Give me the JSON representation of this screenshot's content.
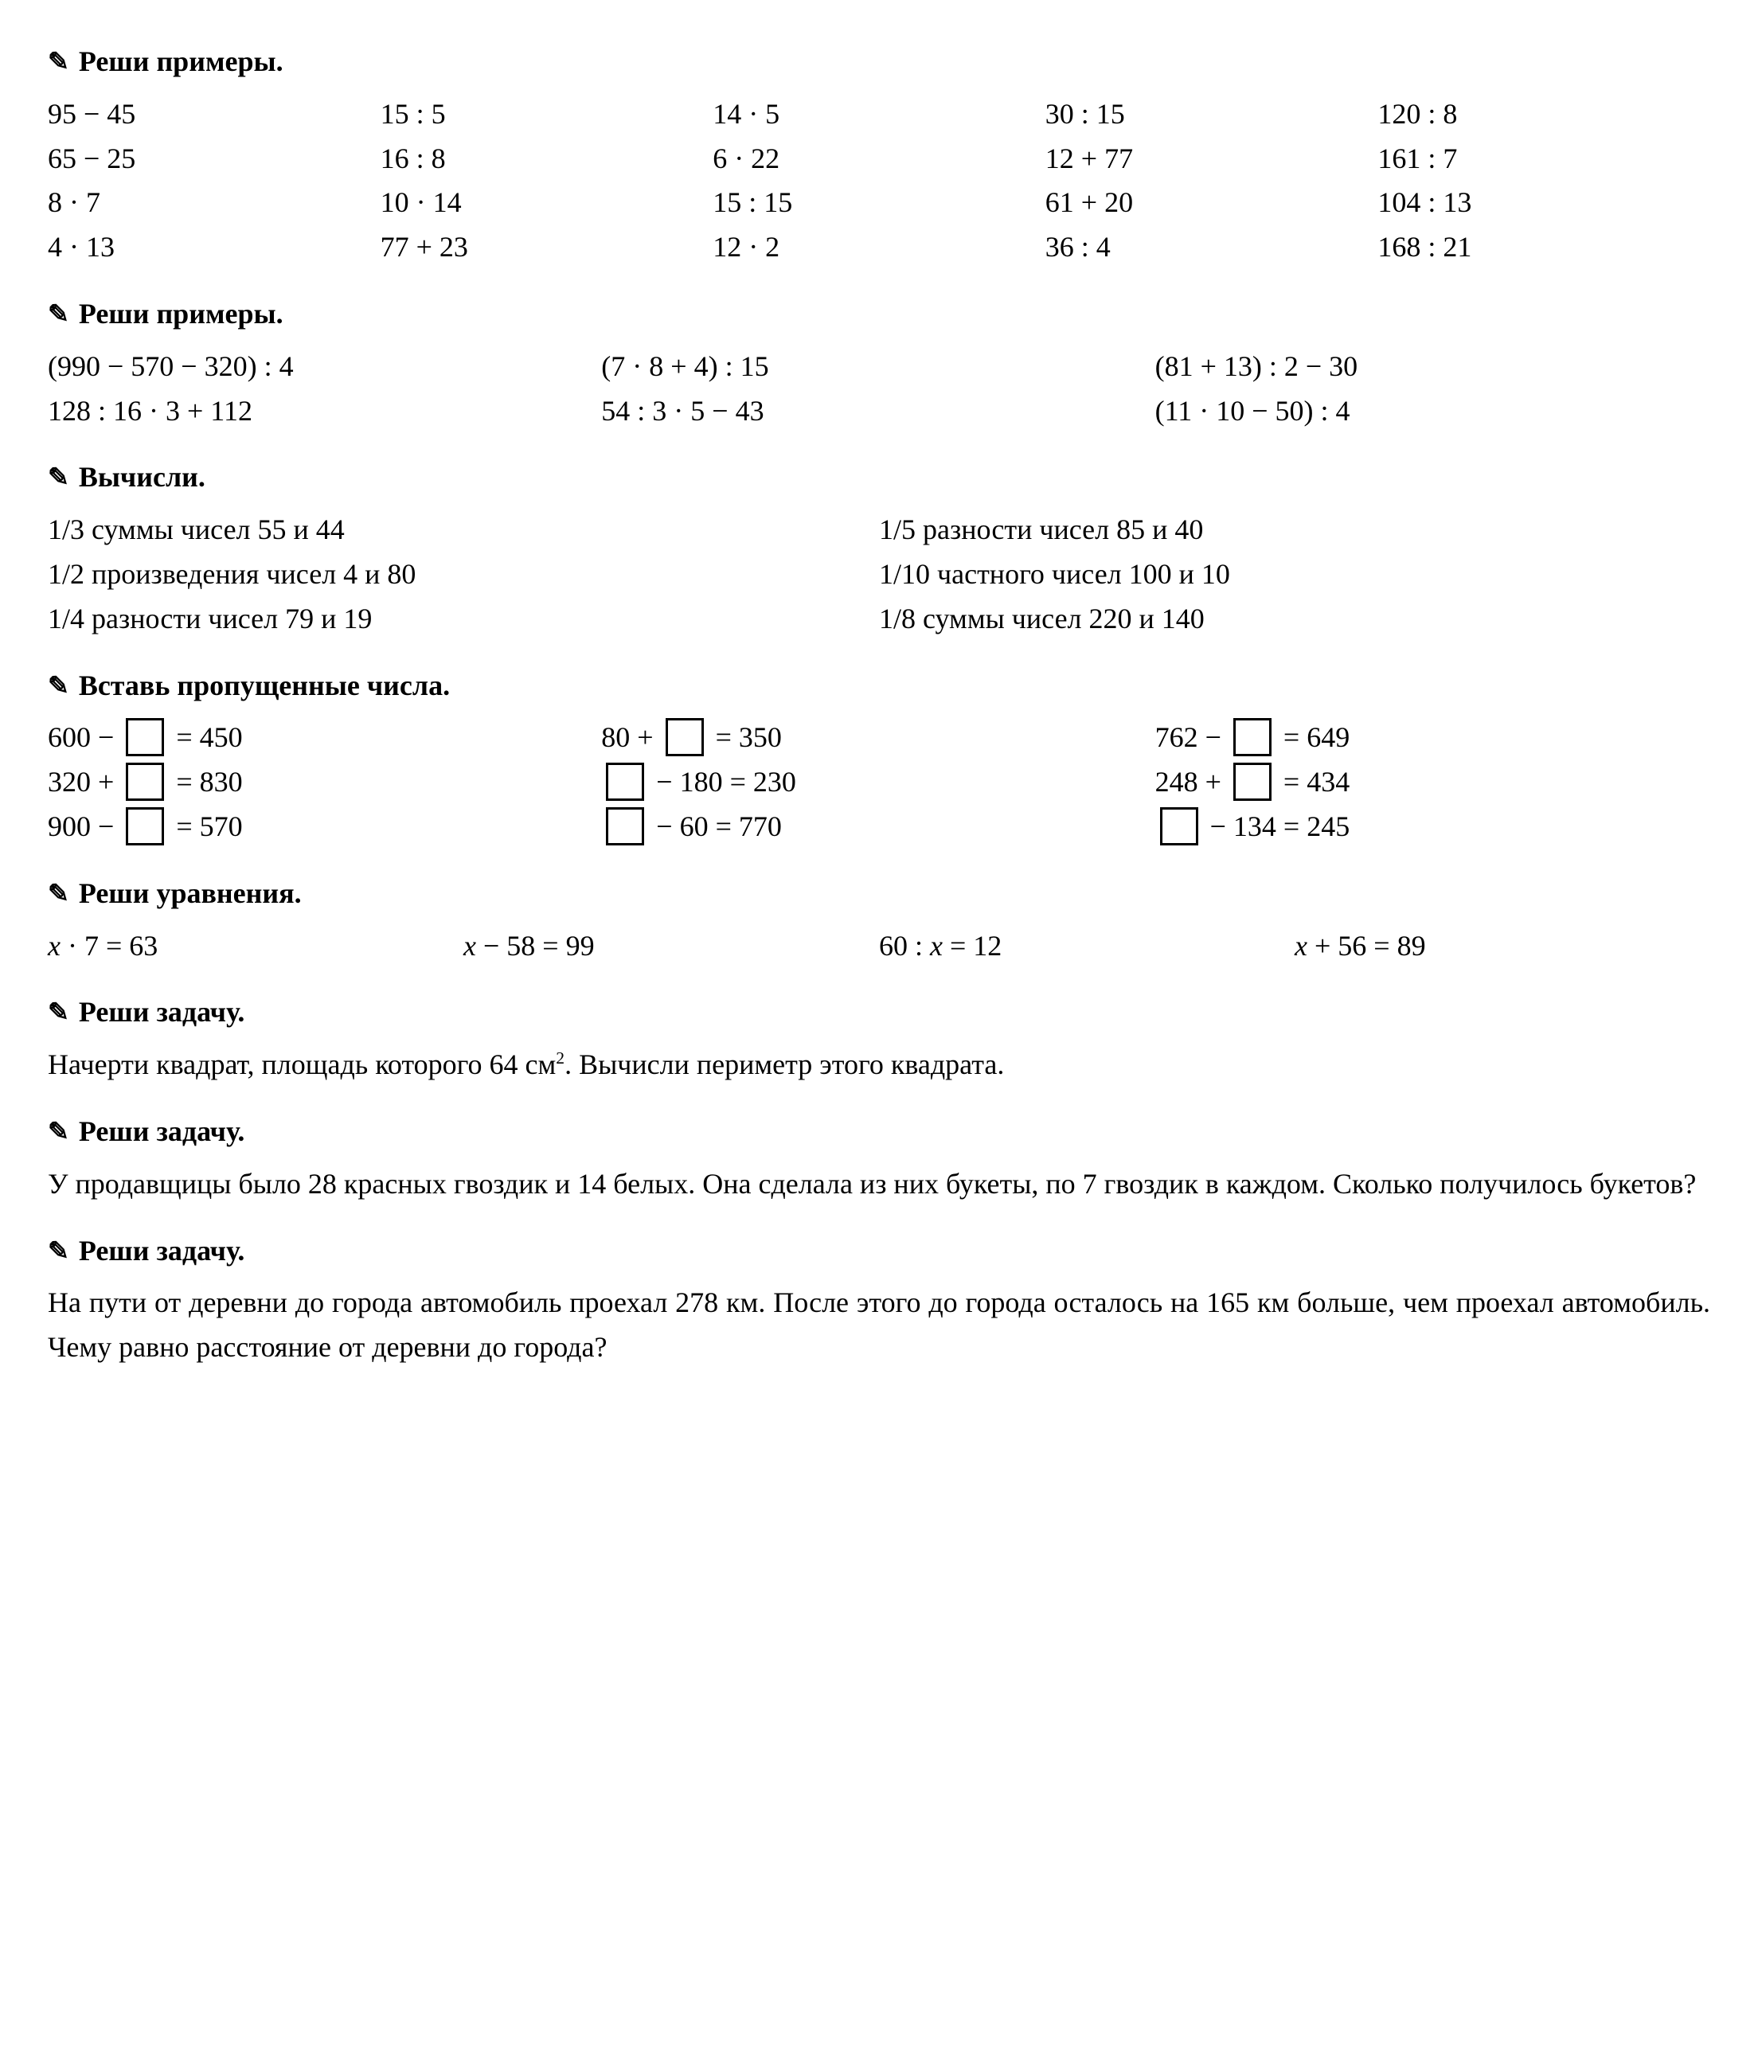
{
  "s1": {
    "title": "Реши примеры.",
    "cols": [
      [
        "95 − 45",
        "65 − 25",
        "8 · 7",
        "4 · 13"
      ],
      [
        "15 : 5",
        "16 : 8",
        "10 · 14",
        "77 + 23"
      ],
      [
        "14 · 5",
        "6 · 22",
        "15 : 15",
        "12 · 2"
      ],
      [
        "30 : 15",
        "12 + 77",
        "61 + 20",
        "36 : 4"
      ],
      [
        "120 : 8",
        "161 : 7",
        "104 : 13",
        "168 : 21"
      ]
    ]
  },
  "s2": {
    "title": "Реши примеры.",
    "cols": [
      [
        "(990 − 570 − 320) : 4",
        "128 : 16 · 3 + 112"
      ],
      [
        "(7 · 8 + 4) : 15",
        "54 : 3 · 5 − 43"
      ],
      [
        "(81 + 13) : 2 − 30",
        "(11 · 10 − 50) : 4"
      ]
    ]
  },
  "s3": {
    "title": "Вычисли.",
    "cols": [
      [
        "1/3 суммы чисел 55 и 44",
        "1/2 произведения чисел 4 и 80",
        "1/4 разности чисел 79 и 19"
      ],
      [
        "1/5 разности чисел 85 и 40",
        "1/10 частного чисел 100 и 10",
        "1/8 суммы чисел 220 и 140"
      ]
    ]
  },
  "s4": {
    "title": "Вставь пропущенные числа.",
    "cols": [
      [
        [
          "600 − ",
          " = 450"
        ],
        [
          "320 + ",
          " = 830"
        ],
        [
          "900 − ",
          " = 570"
        ]
      ],
      [
        [
          "80 + ",
          " = 350"
        ],
        [
          "",
          " − 180 = 230"
        ],
        [
          "",
          " − 60 = 770"
        ]
      ],
      [
        [
          "762 − ",
          " = 649"
        ],
        [
          "248 + ",
          " = 434"
        ],
        [
          "",
          " − 134 = 245"
        ]
      ]
    ]
  },
  "s5": {
    "title": "Реши уравнения.",
    "items": [
      " · 7 = 63",
      " − 58 = 99",
      "60 : ",
      " + 56 = 89"
    ],
    "extra": " = 12",
    "x": "x"
  },
  "s6": {
    "title": "Реши задачу.",
    "text_a": "Начерти квадрат, площадь которого 64 см",
    "text_b": ". Вычисли периметр этого квадрата.",
    "sup": "2"
  },
  "s7": {
    "title": "Реши задачу.",
    "text": "У продавщицы было 28 красных гвоздик и 14 белых. Она сделала из них букеты, по 7 гвоздик в каждом. Сколько получилось букетов?"
  },
  "s8": {
    "title": "Реши задачу.",
    "text": "На пути от деревни до города автомобиль проехал 278 км. После этого до города осталось на 165 км больше, чем проехал автомобиль. Чему равно расстояние от деревни до города?"
  }
}
